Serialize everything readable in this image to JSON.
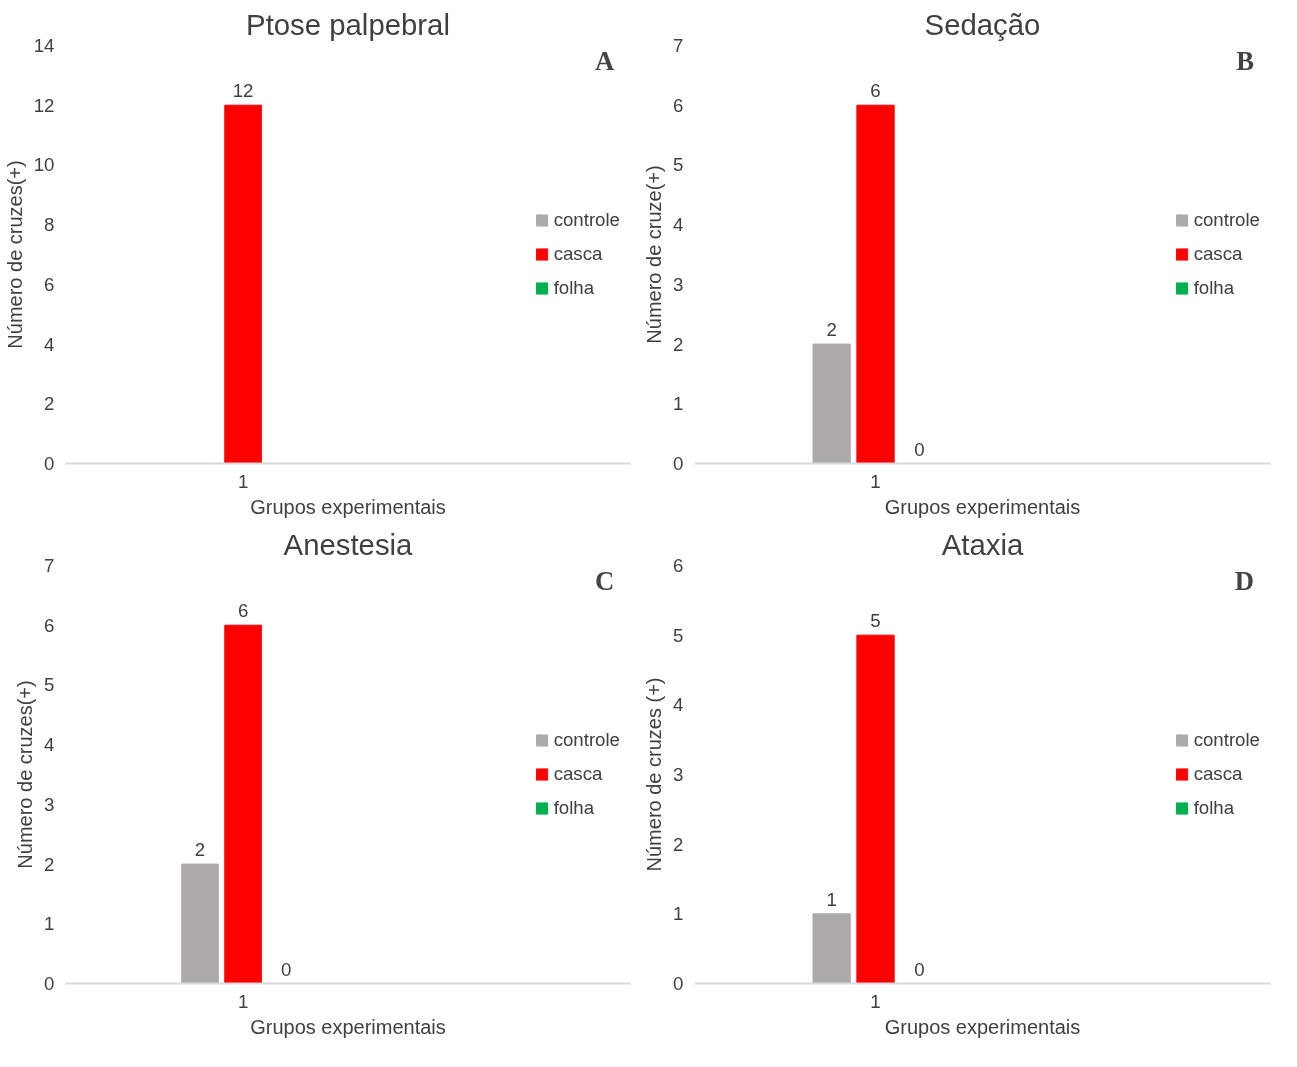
{
  "chart_data": [
    {
      "type": "bar",
      "title": "Ptose palpebral",
      "xlabel": "Grupos experimentais",
      "ylabel": "Número de cruzes(+)",
      "categories": [
        "1"
      ],
      "ylim": [
        0,
        14
      ],
      "yticks": [
        0,
        2,
        4,
        6,
        8,
        10,
        12,
        14
      ],
      "legend": "right",
      "annotations": [
        "A"
      ],
      "series": [
        {
          "name": "controle",
          "color": "#aeaaaa",
          "values": [
            0
          ],
          "value_labels": [
            null
          ]
        },
        {
          "name": "casca",
          "color": "#ff0000",
          "values": [
            12
          ],
          "value_labels": [
            "12"
          ]
        },
        {
          "name": "folha",
          "color": "#00b050",
          "values": [
            0
          ],
          "value_labels": [
            null
          ]
        }
      ]
    },
    {
      "type": "bar",
      "title": "Sedação",
      "xlabel": "Grupos experimentais",
      "ylabel": "Número de cruze(+)",
      "categories": [
        "1"
      ],
      "ylim": [
        0,
        7
      ],
      "yticks": [
        0,
        1,
        2,
        3,
        4,
        5,
        6,
        7
      ],
      "legend": "right",
      "annotations": [
        "B"
      ],
      "data_labels": true,
      "series": [
        {
          "name": "controle",
          "color": "#aeaaaa",
          "values": [
            2
          ]
        },
        {
          "name": "casca",
          "color": "#ff0000",
          "values": [
            6
          ]
        },
        {
          "name": "folha",
          "color": "#00b050",
          "values": [
            0
          ]
        }
      ]
    },
    {
      "type": "bar",
      "title": "Anestesia",
      "xlabel": "Grupos experimentais",
      "ylabel": "Número de cruzes(+)",
      "categories": [
        "1"
      ],
      "ylim": [
        0,
        7
      ],
      "yticks": [
        0,
        1,
        2,
        3,
        4,
        5,
        6,
        7
      ],
      "legend": "right",
      "annotations": [
        "C"
      ],
      "data_labels": true,
      "series": [
        {
          "name": "controle",
          "color": "#aeaaaa",
          "values": [
            2
          ]
        },
        {
          "name": "casca",
          "color": "#ff0000",
          "values": [
            6
          ]
        },
        {
          "name": "folha",
          "color": "#00b050",
          "values": [
            0
          ]
        }
      ]
    },
    {
      "type": "bar",
      "title": "Ataxia",
      "xlabel": "Grupos experimentais",
      "ylabel": "Número de cruzes (+)",
      "categories": [
        "1"
      ],
      "ylim": [
        0,
        6
      ],
      "yticks": [
        0,
        1,
        2,
        3,
        4,
        5,
        6
      ],
      "legend": "right",
      "annotations": [
        "D"
      ],
      "data_labels": true,
      "series": [
        {
          "name": "controle",
          "color": "#aeaaaa",
          "values": [
            1
          ]
        },
        {
          "name": "casca",
          "color": "#ff0000",
          "values": [
            5
          ]
        },
        {
          "name": "folha",
          "color": "#00b050",
          "values": [
            0
          ]
        }
      ]
    }
  ]
}
